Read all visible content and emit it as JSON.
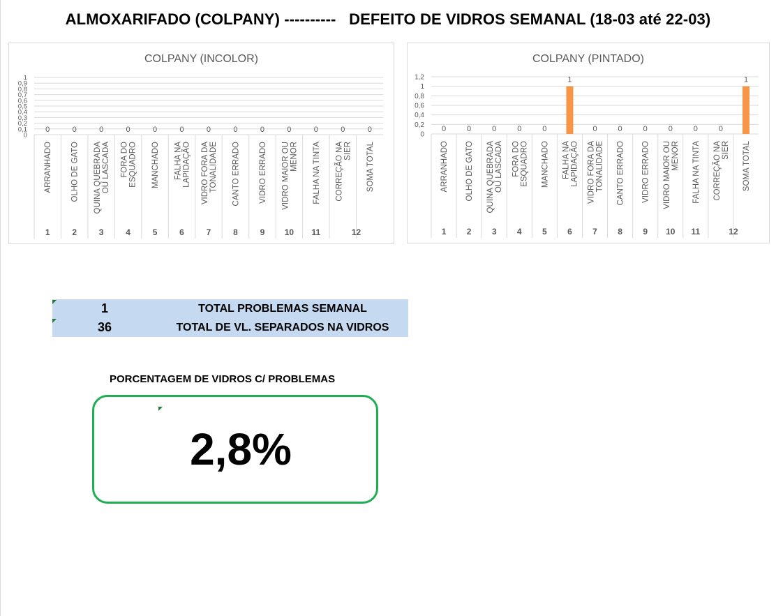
{
  "page": {
    "title": "ALMOXARIFADO (COLPANY) ----------   DEFEITO DE VIDROS SEMANAL (18-03 até 22-03)"
  },
  "colors": {
    "bar": "#f79646",
    "grid": "#d9d9d9",
    "axis_text": "#595959",
    "totals_bg": "#c5d9f1",
    "percent_border": "#1fae52"
  },
  "chart_data": [
    {
      "type": "bar",
      "title": "COLPANY (INCOLOR)",
      "categories": [
        "ARRANHADO",
        "OLHO DE GATO",
        "QUINA QUEBRADA OU LASCADA",
        "FORA DO ESQUADRO",
        "MANCHADO",
        "FALHA  NA LAPIDAÇÃO",
        "VIDRO FORA DA TONALIDADE",
        "CANTO ERRADO",
        "VIDRO ERRADO",
        "VIDRO MAIOR OU MENOR",
        "FALHA NA TINTA",
        "CORREÇÃO NA SIER",
        "SOMA TOTAL"
      ],
      "category_lines": [
        [
          "ARRANHADO"
        ],
        [
          "OLHO DE GATO"
        ],
        [
          "QUINA QUEBRADA",
          "OU LASCADA"
        ],
        [
          "FORA DO",
          "ESQUADRO"
        ],
        [
          "MANCHADO"
        ],
        [
          "FALHA  NA",
          "LAPIDAÇÃO"
        ],
        [
          "VIDRO FORA DA",
          "TONALIDADE"
        ],
        [
          "CANTO ERRADO"
        ],
        [
          "VIDRO ERRADO"
        ],
        [
          "VIDRO MAIOR OU",
          "MENOR"
        ],
        [
          "FALHA NA TINTA"
        ],
        [
          "CORREÇÃO NA",
          "SIER"
        ],
        [
          "SOMA TOTAL"
        ]
      ],
      "group_labels": [
        "1",
        "2",
        "3",
        "4",
        "5",
        "6",
        "7",
        "8",
        "9",
        "10",
        "11",
        "12"
      ],
      "values": [
        0,
        0,
        0,
        0,
        0,
        0,
        0,
        0,
        0,
        0,
        0,
        0,
        0
      ],
      "data_labels": [
        "0",
        "0",
        "0",
        "0",
        "0",
        "0",
        "0",
        "0",
        "0",
        "0",
        "0",
        "0",
        "0"
      ],
      "y_ticks": [
        "0",
        "0,1",
        "0,2",
        "0,3",
        "0,4",
        "0,5",
        "0,6",
        "0,7",
        "0,8",
        "0,9",
        "1"
      ],
      "ylim": [
        0,
        1
      ],
      "grid": true,
      "legend": "none"
    },
    {
      "type": "bar",
      "title": "COLPANY (PINTADO)",
      "categories": [
        "ARRANHADO",
        "OLHO DE GATO",
        "QUINA QUEBRADA OU LASCADA",
        "FORA DO ESQUADRO",
        "MANCHADO",
        "FALHA  NA LAPIDAÇÃO",
        "VIDRO FORA DA TONALIDADE",
        "CANTO ERRADO",
        "VIDRO ERRADO",
        "VIDRO MAIOR OU MENOR",
        "FALHA NA TINTA",
        "CORREÇÃO NA SIER",
        "SOMA TOTAL"
      ],
      "category_lines": [
        [
          "ARRANHADO"
        ],
        [
          "OLHO DE GATO"
        ],
        [
          "QUINA QUEBRADA",
          "OU LASCADA"
        ],
        [
          "FORA DO",
          "ESQUADRO"
        ],
        [
          "MANCHADO"
        ],
        [
          "FALHA  NA",
          "LAPIDAÇÃO"
        ],
        [
          "VIDRO FORA DA",
          "TONALIDADE"
        ],
        [
          "CANTO ERRADO"
        ],
        [
          "VIDRO ERRADO"
        ],
        [
          "VIDRO MAIOR OU",
          "MENOR"
        ],
        [
          "FALHA NA TINTA"
        ],
        [
          "CORREÇÃO NA",
          "SIER"
        ],
        [
          "SOMA TOTAL"
        ]
      ],
      "group_labels": [
        "1",
        "2",
        "3",
        "4",
        "5",
        "6",
        "7",
        "8",
        "9",
        "10",
        "11",
        "12"
      ],
      "values": [
        0,
        0,
        0,
        0,
        0,
        1,
        0,
        0,
        0,
        0,
        0,
        0,
        1
      ],
      "data_labels": [
        "0",
        "0",
        "0",
        "0",
        "0",
        "1",
        "0",
        "0",
        "0",
        "0",
        "0",
        "0",
        "1"
      ],
      "y_ticks": [
        "0",
        "0,2",
        "0,4",
        "0,6",
        "0,8",
        "1",
        "1,2"
      ],
      "ylim": [
        0,
        1.2
      ],
      "grid": true,
      "legend": "none"
    }
  ],
  "totals": [
    {
      "value": "1",
      "label": "TOTAL PROBLEMAS SEMANAL"
    },
    {
      "value": "36",
      "label": "TOTAL DE VL. SEPARADOS NA VIDROS"
    }
  ],
  "percentage": {
    "title": "PORCENTAGEM DE VIDROS C/ PROBLEMAS",
    "value": "2,8%"
  }
}
